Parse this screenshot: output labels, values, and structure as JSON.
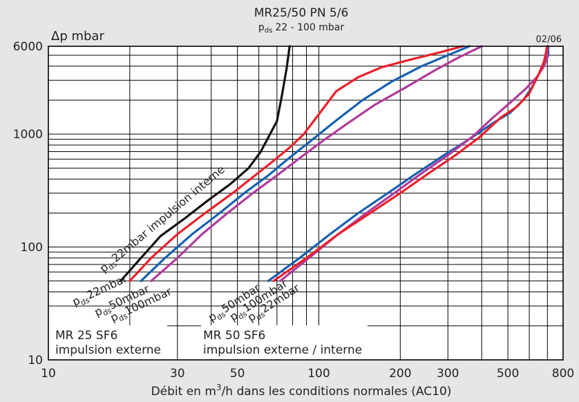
{
  "chart_data": {
    "type": "line",
    "title": "MR25/50 PN 5/6",
    "subtitle": "22 - 100 mbar",
    "subtitle_symbol": "p",
    "subtitle_subscript": "ds",
    "ylabel": "Δp mbar",
    "xlabel_pre": "Débit en m",
    "xlabel_sup": "3",
    "xlabel_post": "/h dans les conditions normales (AC10)",
    "date_code": "02/06",
    "x_scale": "log",
    "y_scale": "log",
    "xlim": [
      10,
      800
    ],
    "ylim": [
      10,
      6000
    ],
    "x_ticks": [
      {
        "value": 10,
        "label": "10"
      },
      {
        "value": 30,
        "label": "30"
      },
      {
        "value": 50,
        "label": "50"
      },
      {
        "value": 100,
        "label": "100"
      },
      {
        "value": 200,
        "label": "200"
      },
      {
        "value": 300,
        "label": "300"
      },
      {
        "value": 500,
        "label": "500"
      },
      {
        "value": 800,
        "label": "800"
      }
    ],
    "y_ticks": [
      {
        "value": 10,
        "label": "10"
      },
      {
        "value": 100,
        "label": "100"
      },
      {
        "value": 1000,
        "label": "1000"
      },
      {
        "value": 6000,
        "label": "6000"
      }
    ],
    "grid": true,
    "colors": {
      "black": "#111111",
      "red": "#e8202a",
      "blue": "#1560b0",
      "magenta": "#b03a9c"
    },
    "series": [
      {
        "id": "mr25-int-22",
        "color": "#111111",
        "points": [
          [
            18.5,
            50
          ],
          [
            22,
            80
          ],
          [
            26,
            125
          ],
          [
            32,
            180
          ],
          [
            39,
            260
          ],
          [
            47,
            360
          ],
          [
            55,
            500
          ],
          [
            61,
            700
          ],
          [
            66,
            1000
          ],
          [
            70,
            1300
          ],
          [
            73,
            2200
          ],
          [
            76,
            3800
          ],
          [
            78,
            6000
          ]
        ]
      },
      {
        "id": "mr25-ext-22",
        "color": "#e8202a",
        "points": [
          [
            20,
            50
          ],
          [
            24,
            80
          ],
          [
            30,
            130
          ],
          [
            38,
            200
          ],
          [
            48,
            300
          ],
          [
            58,
            430
          ],
          [
            68,
            580
          ],
          [
            78,
            760
          ],
          [
            88,
            1000
          ],
          [
            100,
            1500
          ],
          [
            116,
            2400
          ],
          [
            140,
            3200
          ],
          [
            170,
            3900
          ],
          [
            220,
            4600
          ],
          [
            280,
            5300
          ],
          [
            340,
            6000
          ]
        ]
      },
      {
        "id": "mr25-ext-50",
        "color": "#1560b0",
        "points": [
          [
            22,
            50
          ],
          [
            27,
            80
          ],
          [
            34,
            130
          ],
          [
            43,
            200
          ],
          [
            53,
            300
          ],
          [
            65,
            430
          ],
          [
            78,
            620
          ],
          [
            95,
            900
          ],
          [
            115,
            1300
          ],
          [
            145,
            2000
          ],
          [
            185,
            2900
          ],
          [
            240,
            4000
          ],
          [
            300,
            5000
          ],
          [
            360,
            6000
          ]
        ]
      },
      {
        "id": "mr25-ext-100",
        "color": "#b03a9c",
        "points": [
          [
            24,
            50
          ],
          [
            30,
            80
          ],
          [
            37,
            130
          ],
          [
            46,
            200
          ],
          [
            57,
            300
          ],
          [
            70,
            430
          ],
          [
            84,
            600
          ],
          [
            102,
            850
          ],
          [
            125,
            1200
          ],
          [
            160,
            1800
          ],
          [
            210,
            2600
          ],
          [
            270,
            3700
          ],
          [
            330,
            4800
          ],
          [
            400,
            6000
          ]
        ]
      },
      {
        "id": "mr50-50",
        "color": "#1560b0",
        "points": [
          [
            65,
            50
          ],
          [
            85,
            80
          ],
          [
            110,
            130
          ],
          [
            140,
            200
          ],
          [
            180,
            300
          ],
          [
            230,
            450
          ],
          [
            290,
            650
          ],
          [
            360,
            900
          ],
          [
            440,
            1250
          ],
          [
            510,
            1550
          ],
          [
            570,
            2000
          ],
          [
            620,
            2700
          ],
          [
            665,
            3800
          ],
          [
            690,
            4600
          ],
          [
            705,
            5000
          ],
          [
            705,
            6000
          ]
        ]
      },
      {
        "id": "mr50-100",
        "color": "#b03a9c",
        "points": [
          [
            72,
            50
          ],
          [
            92,
            80
          ],
          [
            118,
            130
          ],
          [
            150,
            200
          ],
          [
            190,
            300
          ],
          [
            240,
            450
          ],
          [
            300,
            650
          ],
          [
            370,
            950
          ],
          [
            440,
            1400
          ],
          [
            510,
            1900
          ],
          [
            580,
            2500
          ],
          [
            640,
            3200
          ],
          [
            680,
            4000
          ],
          [
            700,
            4800
          ],
          [
            700,
            6000
          ]
        ]
      },
      {
        "id": "mr50-22",
        "color": "#e8202a",
        "points": [
          [
            68,
            50
          ],
          [
            90,
            80
          ],
          [
            118,
            130
          ],
          [
            155,
            200
          ],
          [
            200,
            300
          ],
          [
            255,
            450
          ],
          [
            320,
            650
          ],
          [
            395,
            950
          ],
          [
            470,
            1400
          ],
          [
            540,
            1750
          ],
          [
            600,
            2300
          ],
          [
            650,
            3400
          ],
          [
            680,
            4400
          ],
          [
            692,
            5300
          ],
          [
            698,
            6000
          ]
        ]
      }
    ],
    "labels": [
      {
        "id": "black-22",
        "sym": "p",
        "sub": "ds",
        "text": "22mbar impulsion interne",
        "color": "#111111"
      },
      {
        "id": "red-22",
        "sym": "p",
        "sub": "ds",
        "text": "22mbar",
        "color": "#e8202a"
      },
      {
        "id": "blue-50",
        "sym": "p",
        "sub": "ds",
        "text": "50mbar",
        "color": "#1560b0"
      },
      {
        "id": "magenta-100",
        "sym": "p",
        "sub": "ds",
        "text": "100mbar",
        "color": "#b03a9c"
      },
      {
        "id": "blue-50-b",
        "sym": "p",
        "sub": "ds",
        "text": "50mbar",
        "color": "#1560b0"
      },
      {
        "id": "magenta-100-b",
        "sym": "p",
        "sub": "ds",
        "text": "100mbar",
        "color": "#b03a9c"
      },
      {
        "id": "red-22-b",
        "sym": "p",
        "sub": "ds",
        "text": "22mbar",
        "color": "#e8202a"
      }
    ],
    "boxes": [
      {
        "line1": "MR 25 SF6",
        "line2": "impulsion externe"
      },
      {
        "line1": "MR 50 SF6",
        "line2": "impulsion externe / interne"
      }
    ]
  }
}
